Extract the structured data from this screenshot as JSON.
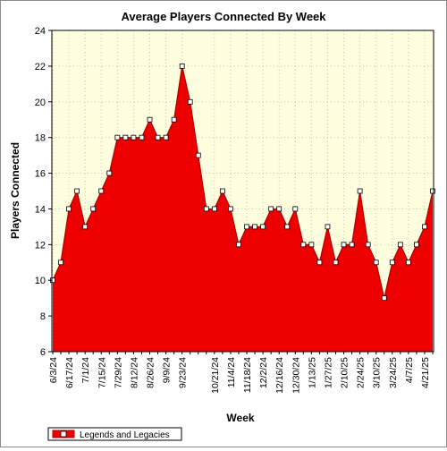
{
  "chart_data": {
    "type": "area",
    "title": "Average Players Connected By Week",
    "xlabel": "Week",
    "ylabel": "Players Connected",
    "ylim": [
      6,
      24
    ],
    "yticks": [
      6,
      8,
      10,
      12,
      14,
      16,
      18,
      20,
      22,
      24
    ],
    "grid": true,
    "legend_position": "bottom-left",
    "colors": {
      "plot_background": "#ffffe0",
      "fill": "#ee0000",
      "line": "#aa0000",
      "marker_fill": "#ffffff",
      "grid": "#c8c8a0"
    },
    "x_tick_labels": [
      "6/3/24",
      "6/17/24",
      "7/1/24",
      "7/15/24",
      "7/29/24",
      "8/12/24",
      "8/26/24",
      "9/9/24",
      "9/23/24",
      "10/21/24",
      "11/4/24",
      "11/18/24",
      "12/2/24",
      "12/16/24",
      "12/30/24",
      "1/13/25",
      "1/27/25",
      "2/10/25",
      "2/24/25",
      "3/10/25",
      "3/24/25",
      "4/7/25",
      "4/21/25"
    ],
    "x_tick_positions": [
      0,
      2,
      4,
      6,
      8,
      10,
      12,
      14,
      16,
      20,
      22,
      24,
      26,
      28,
      30,
      32,
      34,
      36,
      38,
      40,
      42,
      44,
      46
    ],
    "series": [
      {
        "name": "Legends and Legacies",
        "values": [
          10,
          11,
          14,
          15,
          13,
          14,
          15,
          16,
          18,
          18,
          18,
          18,
          19,
          18,
          18,
          19,
          22,
          20,
          17,
          14,
          14,
          15,
          14,
          12,
          13,
          13,
          13,
          14,
          14,
          13,
          14,
          12,
          12,
          11,
          13,
          11,
          12,
          12,
          15,
          12,
          11,
          9,
          11,
          12,
          11,
          12,
          13,
          15
        ]
      }
    ]
  }
}
